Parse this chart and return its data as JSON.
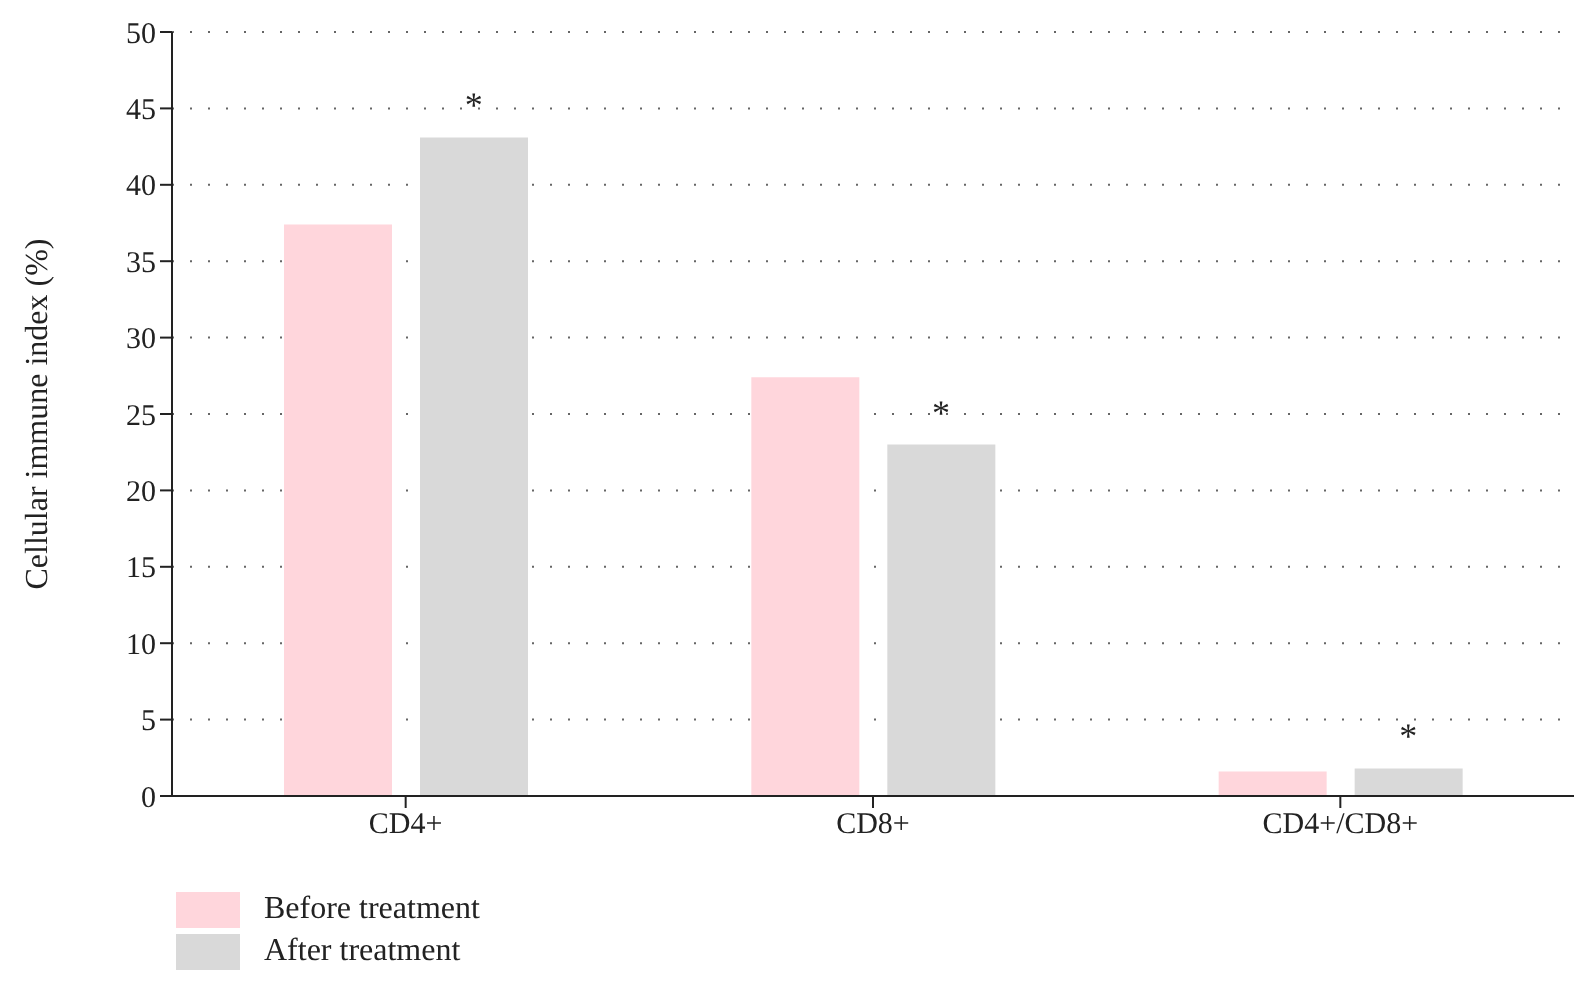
{
  "chart_data": {
    "type": "bar",
    "ylabel": "Cellular immune index (%)",
    "categories": [
      "CD4+",
      "CD8+",
      "CD4+/CD8+"
    ],
    "series": [
      {
        "name": "Before treatment",
        "color": "#ffd6dc",
        "values": [
          37.4,
          27.4,
          1.6
        ]
      },
      {
        "name": "After treatment",
        "color": "#d9d9d9",
        "values": [
          43.1,
          23.0,
          1.8
        ]
      }
    ],
    "ylim": [
      0,
      50
    ],
    "yticks": [
      0,
      5,
      10,
      15,
      20,
      25,
      30,
      35,
      40,
      45,
      50
    ],
    "grid": "y",
    "legend": "bottom left",
    "annotations": [
      "*",
      "*",
      "*"
    ]
  }
}
